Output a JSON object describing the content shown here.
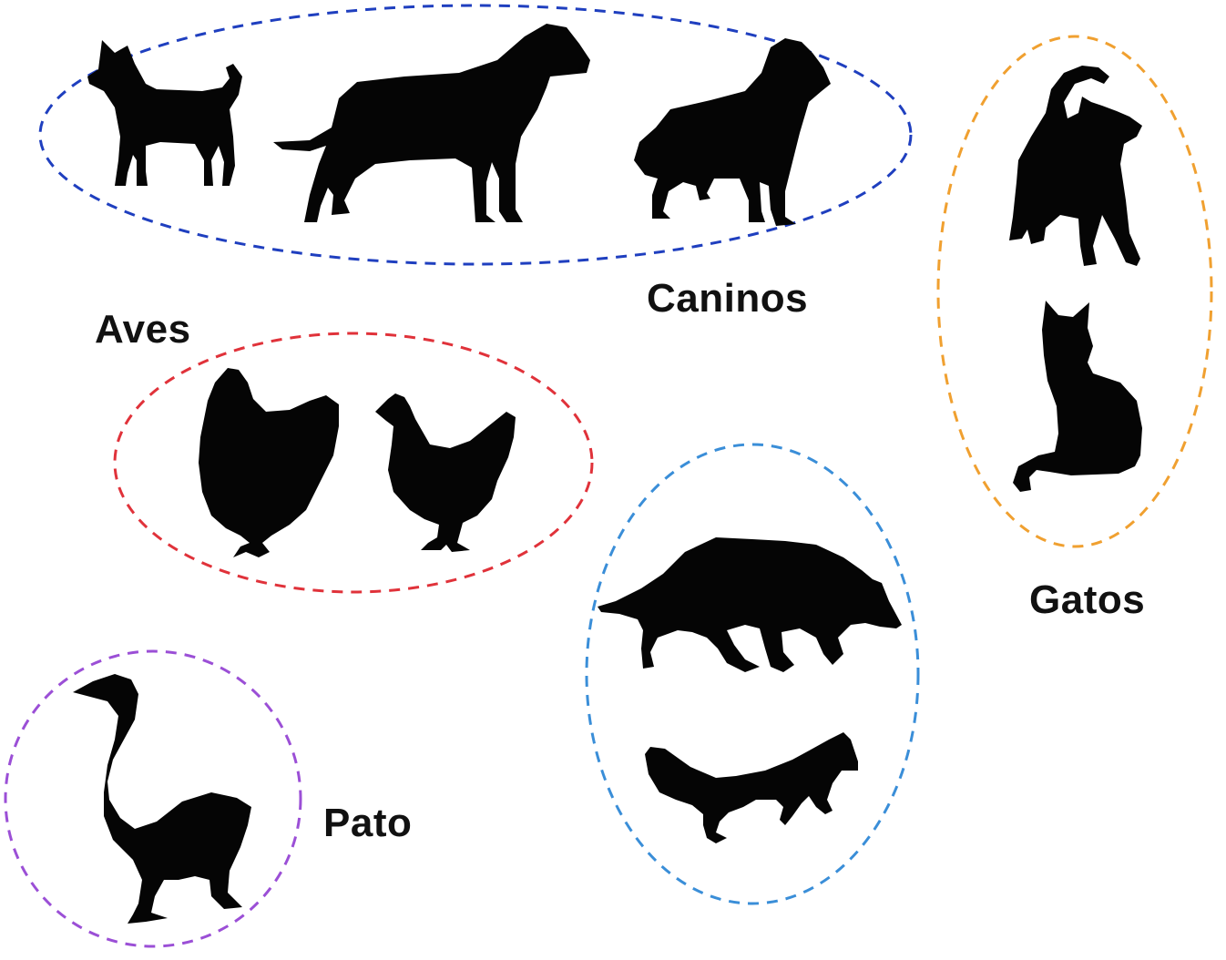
{
  "colors": {
    "caninos_ring": "#1f3fbf",
    "aves_ring": "#e0323a",
    "gatos_ring": "#f0a030",
    "pato_ring": "#9b4fd6",
    "wild_canids_ring": "#3a8ed8",
    "silhouette": "#050505"
  },
  "groups": {
    "caninos": {
      "label": "Caninos",
      "members": [
        "small-dog-icon",
        "large-dog-icon",
        "collie-icon"
      ]
    },
    "aves": {
      "label": "Aves",
      "members": [
        "hen-icon",
        "chicken-icon"
      ]
    },
    "gatos": {
      "label": "Gatos",
      "members": [
        "standing-cat-icon",
        "sitting-cat-icon"
      ]
    },
    "pato": {
      "label": "Pato",
      "members": [
        "goose-icon"
      ]
    },
    "wild_canids": {
      "members": [
        "wolf-icon",
        "fox-icon"
      ]
    }
  }
}
